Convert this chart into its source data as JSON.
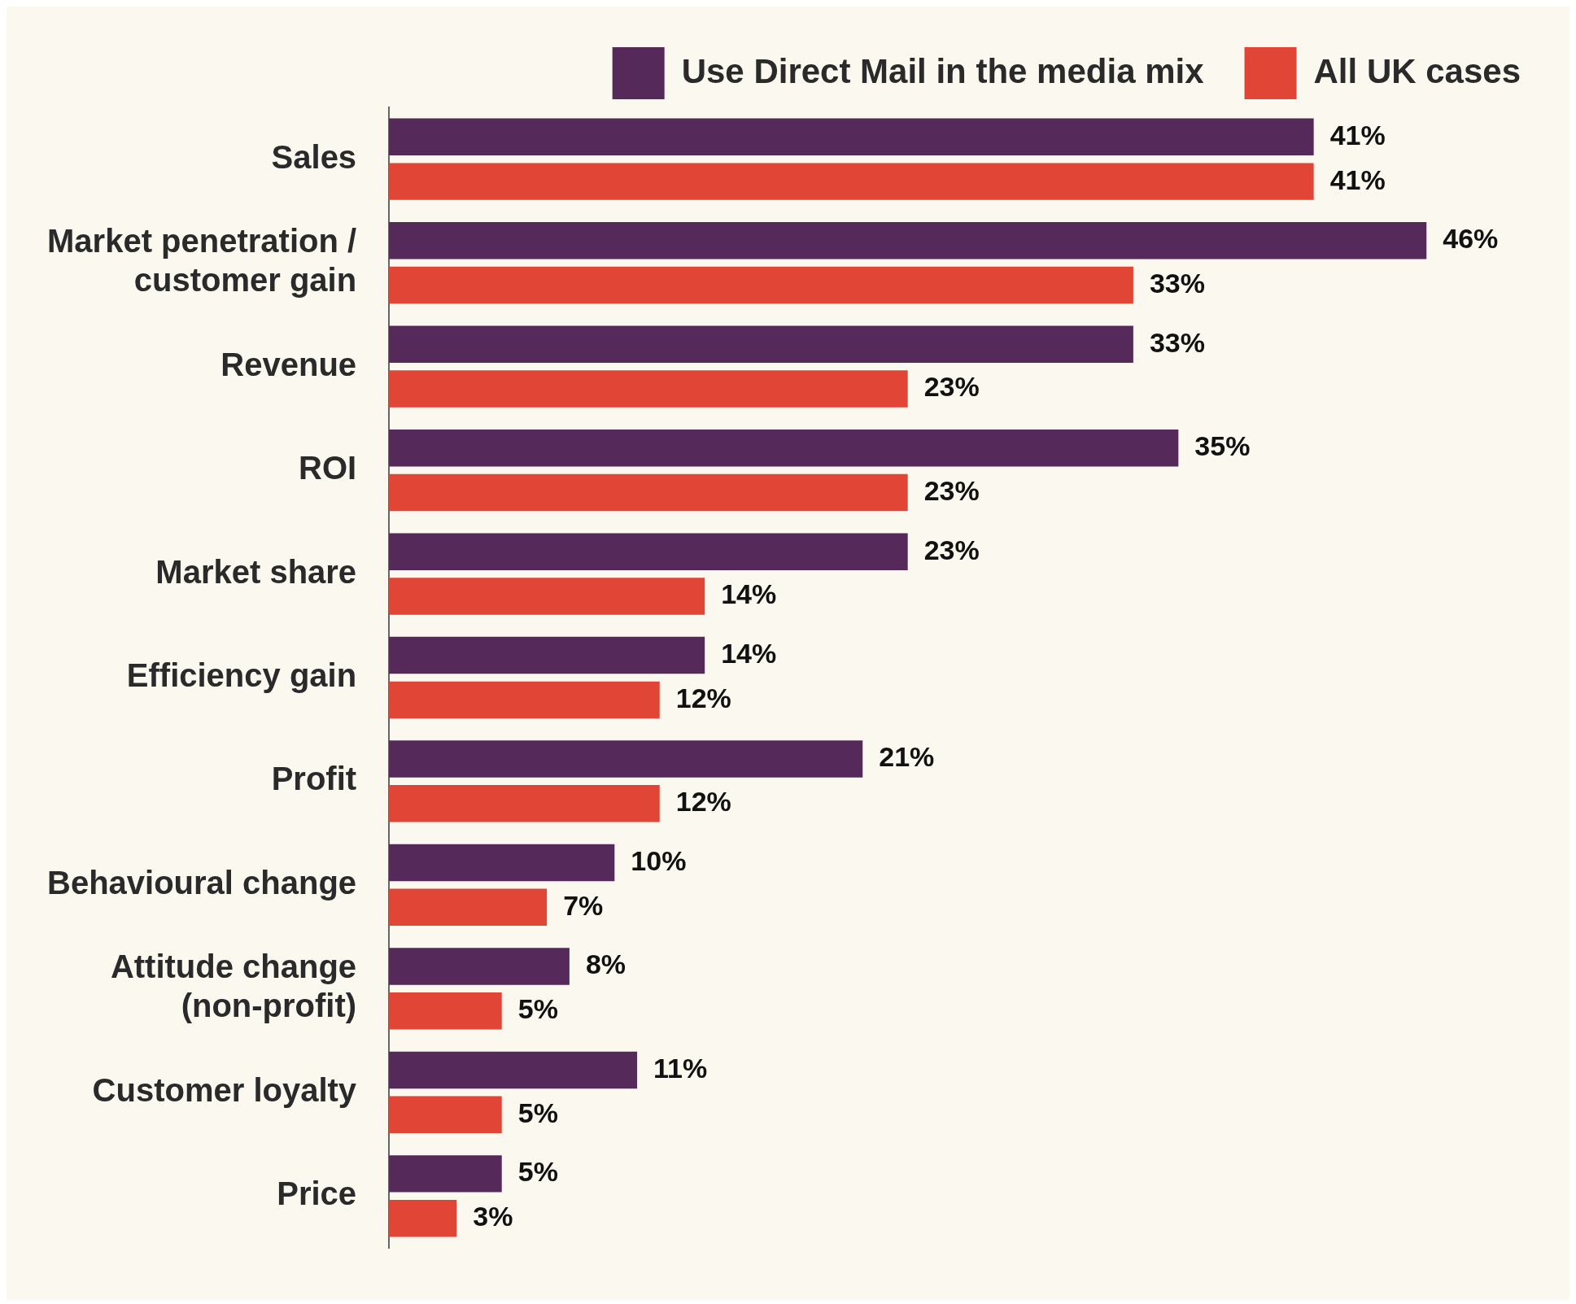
{
  "chart_data": {
    "type": "bar",
    "orientation": "horizontal",
    "legend": "top",
    "categories": [
      "Sales",
      "Market penetration / customer gain",
      "Revenue",
      "ROI",
      "Market share",
      "Efficiency gain",
      "Profit",
      "Behavioural change",
      "Attitude change (non-profit)",
      "Customer loyalty",
      "Price"
    ],
    "series": [
      {
        "name": "Use Direct Mail in the media mix",
        "color": "#55295a",
        "values": [
          41,
          46,
          33,
          35,
          23,
          14,
          21,
          10,
          8,
          11,
          5
        ],
        "value_labels": [
          "41%",
          "46%",
          "33%",
          "35%",
          "23%",
          "14%",
          "21%",
          "10%",
          "8%",
          "11%",
          "5%"
        ]
      },
      {
        "name": "All UK cases",
        "color": "#e04535",
        "values": [
          41,
          33,
          23,
          23,
          14,
          12,
          12,
          7,
          5,
          5,
          3
        ],
        "value_labels": [
          "41%",
          "33%",
          "23%",
          "23%",
          "14%",
          "12%",
          "12%",
          "7%",
          "5%",
          "5%",
          "3%"
        ]
      }
    ]
  }
}
